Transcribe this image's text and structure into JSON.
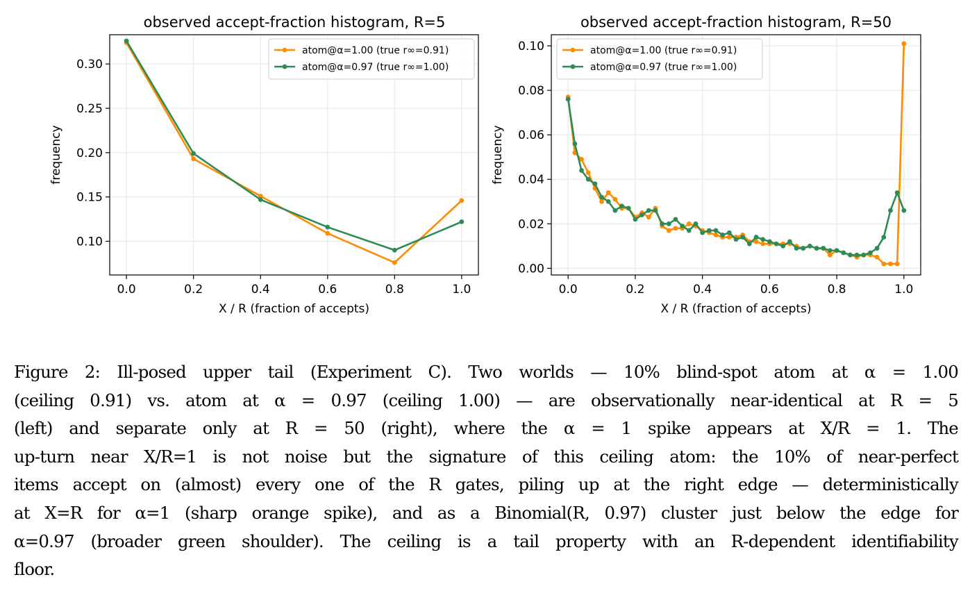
{
  "chart_data": [
    {
      "type": "line",
      "title": "observed accept-fraction histogram, R=5",
      "xlabel": "X / R  (fraction of accepts)",
      "ylabel": "frequency",
      "xlim": [
        -0.05,
        1.05
      ],
      "ylim": [
        0.062,
        0.333
      ],
      "xticks": [
        "0.0",
        "0.2",
        "0.4",
        "0.6",
        "0.8",
        "1.0"
      ],
      "yticks": [
        "0.10",
        "0.15",
        "0.20",
        "0.25",
        "0.30"
      ],
      "grid": true,
      "legend": "top-right",
      "series": [
        {
          "name": "atom@α=1.00  (true r∞=0.91)",
          "color": "#ff8c00",
          "x": [
            0.0,
            0.2,
            0.4,
            0.6,
            0.8,
            1.0
          ],
          "y": [
            0.324,
            0.193,
            0.151,
            0.109,
            0.076,
            0.146
          ]
        },
        {
          "name": "atom@α=0.97  (true r∞=1.00)",
          "color": "#2e8b57",
          "x": [
            0.0,
            0.2,
            0.4,
            0.6,
            0.8,
            1.0
          ],
          "y": [
            0.326,
            0.199,
            0.147,
            0.116,
            0.09,
            0.122
          ]
        }
      ]
    },
    {
      "type": "line",
      "title": "observed accept-fraction histogram, R=50",
      "xlabel": "X / R  (fraction of accepts)",
      "ylabel": "frequency",
      "xlim": [
        -0.05,
        1.05
      ],
      "ylim": [
        -0.003,
        0.105
      ],
      "xticks": [
        "0.0",
        "0.2",
        "0.4",
        "0.6",
        "0.8",
        "1.0"
      ],
      "yticks": [
        "0.00",
        "0.02",
        "0.04",
        "0.06",
        "0.08",
        "0.10"
      ],
      "grid": true,
      "legend": "top-left",
      "series": [
        {
          "name": "atom@α=1.00  (true r∞=0.91)",
          "color": "#ff8c00",
          "x": [
            0.0,
            0.02,
            0.04,
            0.06,
            0.08,
            0.1,
            0.12,
            0.14,
            0.16,
            0.18,
            0.2,
            0.22,
            0.24,
            0.26,
            0.28,
            0.3,
            0.32,
            0.34,
            0.36,
            0.38,
            0.4,
            0.42,
            0.44,
            0.46,
            0.48,
            0.5,
            0.52,
            0.54,
            0.56,
            0.58,
            0.6,
            0.62,
            0.64,
            0.66,
            0.68,
            0.7,
            0.72,
            0.74,
            0.76,
            0.78,
            0.8,
            0.82,
            0.84,
            0.86,
            0.88,
            0.9,
            0.92,
            0.94,
            0.96,
            0.98,
            1.0
          ],
          "y": [
            0.077,
            0.052,
            0.049,
            0.043,
            0.036,
            0.03,
            0.034,
            0.031,
            0.027,
            0.027,
            0.023,
            0.025,
            0.023,
            0.027,
            0.019,
            0.017,
            0.018,
            0.018,
            0.02,
            0.019,
            0.017,
            0.016,
            0.015,
            0.014,
            0.014,
            0.014,
            0.015,
            0.012,
            0.012,
            0.011,
            0.011,
            0.011,
            0.011,
            0.011,
            0.01,
            0.009,
            0.01,
            0.009,
            0.009,
            0.006,
            0.008,
            0.007,
            0.006,
            0.005,
            0.006,
            0.006,
            0.005,
            0.002,
            0.002,
            0.002,
            0.101
          ]
        },
        {
          "name": "atom@α=0.97  (true r∞=1.00)",
          "color": "#2e8b57",
          "x": [
            0.0,
            0.02,
            0.04,
            0.06,
            0.08,
            0.1,
            0.12,
            0.14,
            0.16,
            0.18,
            0.2,
            0.22,
            0.24,
            0.26,
            0.28,
            0.3,
            0.32,
            0.34,
            0.36,
            0.38,
            0.4,
            0.42,
            0.44,
            0.46,
            0.48,
            0.5,
            0.52,
            0.54,
            0.56,
            0.58,
            0.6,
            0.62,
            0.64,
            0.66,
            0.68,
            0.7,
            0.72,
            0.74,
            0.76,
            0.78,
            0.8,
            0.82,
            0.84,
            0.86,
            0.88,
            0.9,
            0.92,
            0.94,
            0.96,
            0.98,
            1.0
          ],
          "y": [
            0.076,
            0.056,
            0.044,
            0.04,
            0.038,
            0.032,
            0.03,
            0.026,
            0.028,
            0.027,
            0.022,
            0.024,
            0.026,
            0.026,
            0.02,
            0.02,
            0.022,
            0.019,
            0.017,
            0.02,
            0.016,
            0.017,
            0.017,
            0.015,
            0.016,
            0.013,
            0.014,
            0.011,
            0.014,
            0.013,
            0.012,
            0.011,
            0.01,
            0.012,
            0.009,
            0.009,
            0.01,
            0.009,
            0.009,
            0.008,
            0.008,
            0.007,
            0.006,
            0.006,
            0.006,
            0.007,
            0.009,
            0.014,
            0.026,
            0.034,
            0.026
          ]
        }
      ]
    }
  ],
  "caption": {
    "lines": [
      "Figure 2: Ill-posed upper tail (Experiment C). Two worlds — 10% blind-spot atom at α = 1.00",
      "(ceiling 0.91) vs. atom at α = 0.97 (ceiling 1.00) — are observationally near-identical at R = 5",
      "(left) and separate only at R = 50 (right), where the α = 1 spike appears at X/R = 1. The",
      "up-turn near X/R=1 is not noise but the signature of this ceiling atom: the 10% of near-perfect",
      "items accept on (almost) every one of the R gates, piling up at the right edge — deterministically",
      "at X=R for α=1 (sharp orange spike), and as a Binomial(R, 0.97) cluster just below the edge for",
      "α=0.97 (broader green shoulder). The ceiling is a tail property with an R-dependent identifiability",
      "floor."
    ]
  }
}
